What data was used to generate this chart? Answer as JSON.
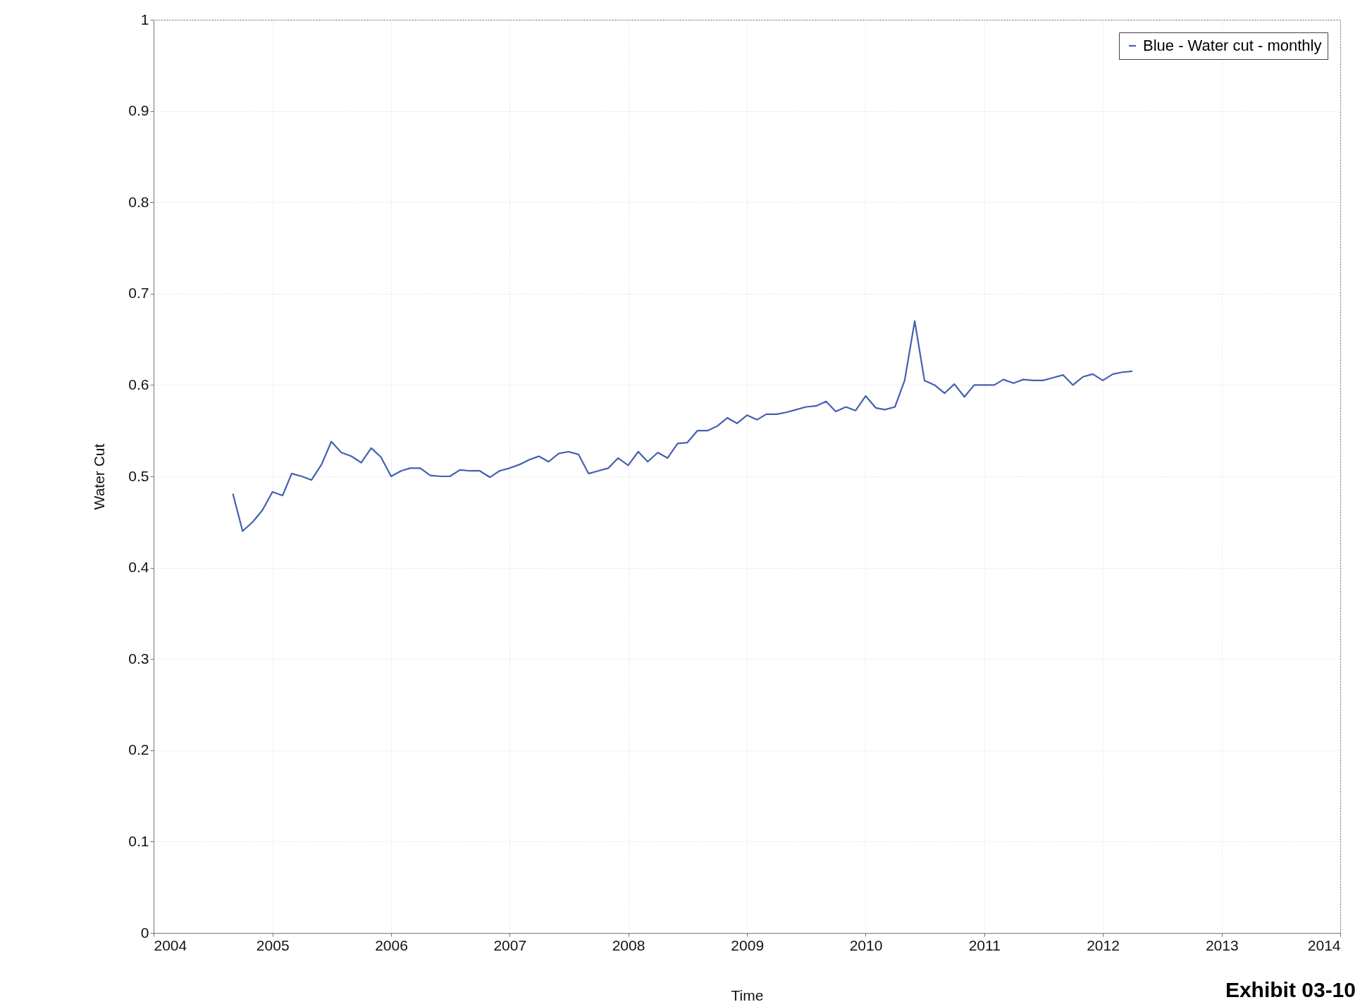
{
  "chart_data": {
    "type": "line",
    "xlabel": "Time",
    "ylabel": "Water Cut",
    "annotations": [
      "Exhibit 03-10"
    ],
    "xlim": [
      "2004",
      "2014"
    ],
    "xticks": [
      "2004",
      "2005",
      "2006",
      "2007",
      "2008",
      "2009",
      "2010",
      "2011",
      "2012",
      "2013",
      "2014"
    ],
    "ylim": [
      0,
      1
    ],
    "yticks": [
      0,
      0.1,
      0.2,
      0.3,
      0.4,
      0.5,
      0.6,
      0.7,
      0.8,
      0.9,
      1
    ],
    "grid": true,
    "legend": "top right",
    "x": [
      "2004-09",
      "2004-10",
      "2004-11",
      "2004-12",
      "2005-01",
      "2005-02",
      "2005-03",
      "2005-04",
      "2005-05",
      "2005-06",
      "2005-07",
      "2005-08",
      "2005-09",
      "2005-10",
      "2005-11",
      "2005-12",
      "2006-01",
      "2006-02",
      "2006-03",
      "2006-04",
      "2006-05",
      "2006-06",
      "2006-07",
      "2006-08",
      "2006-09",
      "2006-10",
      "2006-11",
      "2006-12",
      "2007-01",
      "2007-02",
      "2007-03",
      "2007-04",
      "2007-05",
      "2007-06",
      "2007-07",
      "2007-08",
      "2007-09",
      "2007-10",
      "2007-11",
      "2007-12",
      "2008-01",
      "2008-02",
      "2008-03",
      "2008-04",
      "2008-05",
      "2008-06",
      "2008-07",
      "2008-08",
      "2008-09",
      "2008-10",
      "2008-11",
      "2008-12",
      "2009-01",
      "2009-02",
      "2009-03",
      "2009-04",
      "2009-05",
      "2009-06",
      "2009-07",
      "2009-08",
      "2009-09",
      "2009-10",
      "2009-11",
      "2009-12",
      "2010-01",
      "2010-02",
      "2010-03",
      "2010-04",
      "2010-05",
      "2010-06",
      "2010-07",
      "2010-08",
      "2010-09",
      "2010-10",
      "2010-11",
      "2010-12",
      "2011-01",
      "2011-02",
      "2011-03",
      "2011-04",
      "2011-05",
      "2011-06",
      "2011-07",
      "2011-08",
      "2011-09",
      "2011-10",
      "2011-11",
      "2011-12",
      "2012-01",
      "2012-02",
      "2012-03",
      "2012-04"
    ],
    "series": [
      {
        "name": "Blue - Water cut - monthly",
        "color": "#4460b0",
        "values": [
          0.481,
          0.44,
          0.45,
          0.463,
          0.483,
          0.479,
          0.503,
          0.5,
          0.496,
          0.513,
          0.538,
          0.526,
          0.522,
          0.515,
          0.531,
          0.521,
          0.5,
          0.506,
          0.509,
          0.509,
          0.501,
          0.5,
          0.5,
          0.507,
          0.506,
          0.506,
          0.499,
          0.506,
          0.509,
          0.513,
          0.518,
          0.522,
          0.516,
          0.525,
          0.527,
          0.524,
          0.503,
          0.506,
          0.509,
          0.52,
          0.512,
          0.527,
          0.516,
          0.526,
          0.52,
          0.536,
          0.537,
          0.55,
          0.55,
          0.555,
          0.564,
          0.558,
          0.567,
          0.562,
          0.568,
          0.568,
          0.57,
          0.573,
          0.576,
          0.577,
          0.582,
          0.571,
          0.576,
          0.572,
          0.588,
          0.575,
          0.573,
          0.576,
          0.605,
          0.67,
          0.605,
          0.6,
          0.591,
          0.601,
          0.587,
          0.6,
          0.6,
          0.6,
          0.606,
          0.602,
          0.606,
          0.605,
          0.605,
          0.608,
          0.611,
          0.6,
          0.609,
          0.612,
          0.605,
          0.612,
          0.614,
          0.615
        ]
      }
    ]
  }
}
